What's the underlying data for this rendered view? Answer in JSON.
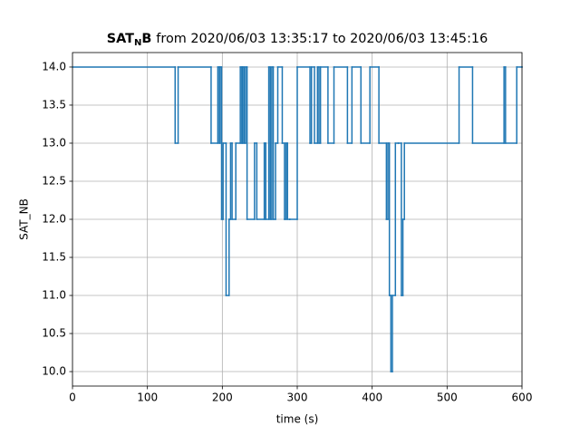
{
  "chart_data": {
    "type": "step",
    "title": {
      "bold": "SAT",
      "subscript": "N",
      "bold_end": "B",
      "text": "from 2020/06/03 13:35:17 to 2020/06/03 13:45:16"
    },
    "xlabel": "time (s)",
    "ylabel": "SAT_NB",
    "color": "#1f77b4",
    "grid": true,
    "xlim": [
      0,
      600
    ],
    "ylim": [
      9.81,
      14.19
    ],
    "xticks": [
      0,
      100,
      200,
      300,
      400,
      500,
      600
    ],
    "yticks": [
      {
        "value": 10,
        "label": "10.0"
      },
      {
        "value": 10.5,
        "label": "10.5"
      },
      {
        "value": 11,
        "label": "11.0"
      },
      {
        "value": 11.5,
        "label": "11.5"
      },
      {
        "value": 12,
        "label": "12.0"
      },
      {
        "value": 12.5,
        "label": "12.5"
      },
      {
        "value": 13,
        "label": "13.0"
      },
      {
        "value": 13.5,
        "label": "13.5"
      },
      {
        "value": 14,
        "label": "14.0"
      }
    ],
    "x": [
      0,
      137,
      141,
      185,
      194,
      196,
      197,
      199,
      201,
      205,
      209,
      211,
      213,
      218,
      224,
      226,
      227,
      229,
      231,
      233,
      243,
      246,
      256,
      258,
      262,
      264,
      266,
      268,
      271,
      274,
      280,
      283,
      285,
      287,
      290,
      300,
      317,
      319,
      323,
      327,
      329,
      331,
      341,
      349,
      367,
      373,
      385,
      397,
      409,
      419,
      421,
      423,
      425,
      427,
      431,
      435,
      439,
      441,
      443,
      516,
      534,
      576,
      578,
      593,
      600
    ],
    "values": [
      14,
      13,
      14,
      13,
      14,
      13,
      14,
      12,
      13,
      11,
      12,
      13,
      12,
      13,
      14,
      13,
      14,
      13,
      14,
      12,
      13,
      12,
      13,
      12,
      14,
      12,
      14,
      12,
      13,
      14,
      13,
      12,
      13,
      12,
      12,
      14,
      13,
      14,
      13,
      14,
      13,
      14,
      13,
      14,
      13,
      14,
      13,
      14,
      13,
      12,
      13,
      11,
      10,
      11,
      13,
      13,
      11,
      12,
      13,
      14,
      13,
      14,
      13,
      14,
      14
    ]
  }
}
